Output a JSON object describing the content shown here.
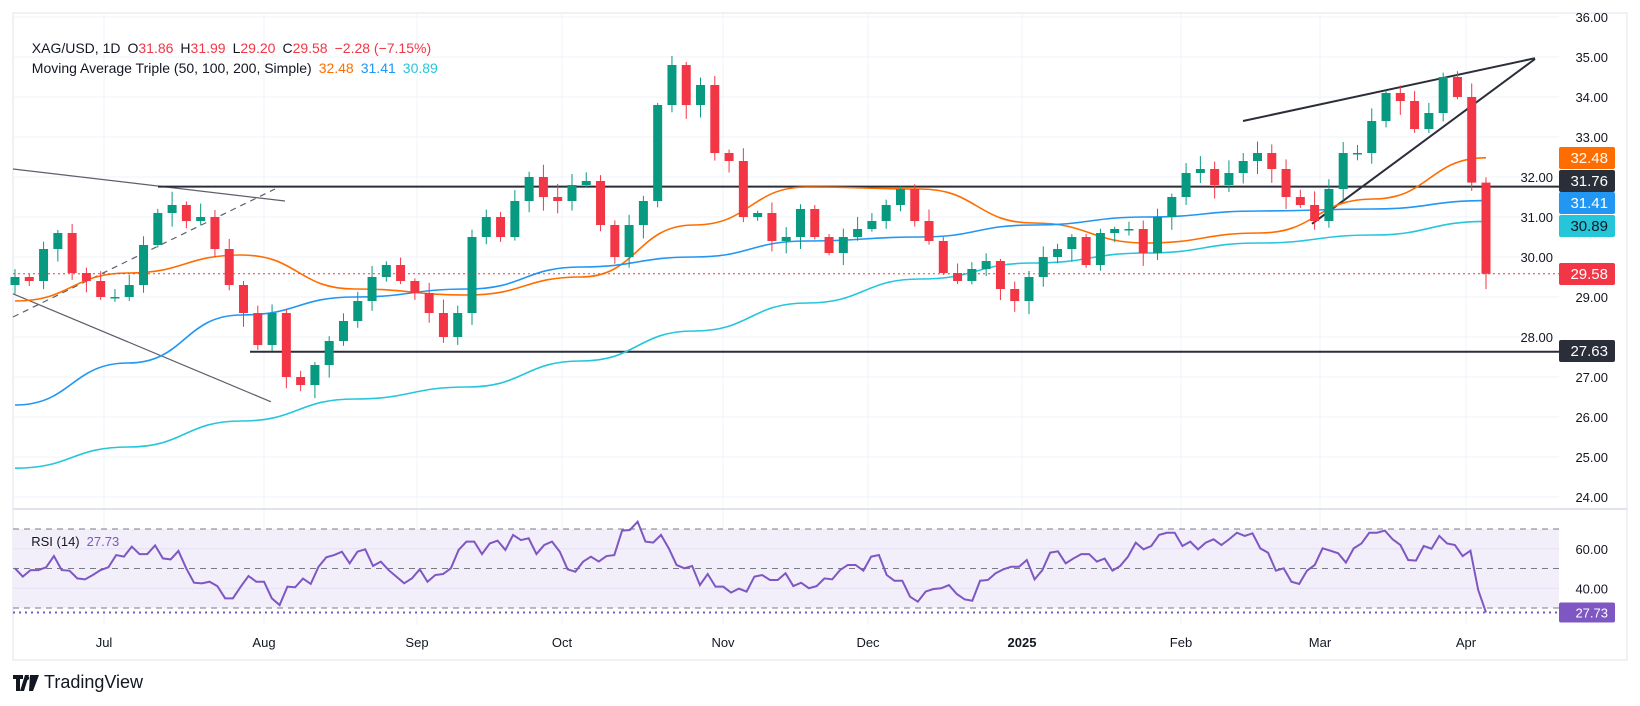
{
  "header": {
    "symbol": "XAG/USD, 1D",
    "open_label": "O",
    "open": "31.86",
    "high_label": "H",
    "high": "31.99",
    "low_label": "L",
    "low": "29.20",
    "close_label": "C",
    "close": "29.58",
    "change": "−2.28 (−7.15%)"
  },
  "ma_legend": {
    "title": "Moving Average Triple (50, 100, 200, Simple)",
    "ma50": "32.48",
    "ma100": "31.41",
    "ma200": "30.89"
  },
  "rsi_legend": {
    "title": "RSI (14)",
    "value": "27.73"
  },
  "colors": {
    "up": "#089981",
    "down": "#f23645",
    "ma50": "#ff6d00",
    "ma100": "#2196f3",
    "ma200": "#26c6da",
    "rsi": "#7e57c2",
    "drawing": "#2a2e39",
    "grid": "#f0f3fa",
    "rsi_band": "#f2eefa"
  },
  "chart_data": [
    {
      "type": "candlestick",
      "title": "XAG/USD, 1D",
      "ylim": [
        23.5,
        36.3
      ],
      "yticks": [
        "36.00",
        "35.00",
        "34.00",
        "33.00",
        "32.00",
        "31.00",
        "30.00",
        "29.00",
        "28.00",
        "27.00",
        "26.00",
        "25.00",
        "24.00"
      ],
      "xticks": [
        "Jul",
        "Aug",
        "Sep",
        "Oct",
        "Nov",
        "Dec",
        "2025",
        "Feb",
        "Mar",
        "Apr"
      ],
      "first_open": 29.3,
      "closes": [
        29.5,
        29.4,
        30.2,
        30.6,
        29.6,
        29.4,
        29.0,
        29.0,
        29.3,
        30.3,
        31.1,
        31.3,
        30.9,
        31.0,
        30.2,
        29.3,
        28.6,
        27.8,
        28.6,
        27.0,
        26.8,
        27.3,
        27.9,
        28.4,
        28.9,
        29.5,
        29.8,
        29.4,
        29.1,
        28.6,
        28.0,
        28.6,
        30.5,
        31.0,
        30.5,
        31.4,
        32.0,
        31.5,
        31.4,
        31.8,
        31.9,
        30.8,
        30.0,
        30.8,
        31.4,
        33.8,
        34.8,
        33.8,
        34.3,
        32.6,
        32.4,
        31.0,
        31.1,
        30.4,
        30.5,
        31.2,
        30.5,
        30.1,
        30.5,
        30.7,
        30.9,
        31.3,
        31.7,
        30.9,
        30.4,
        29.6,
        29.4,
        29.7,
        29.9,
        29.2,
        28.9,
        29.5,
        30.0,
        30.2,
        30.5,
        29.8,
        30.6,
        30.7,
        30.7,
        30.1,
        31.0,
        31.5,
        32.1,
        32.2,
        31.8,
        32.1,
        32.4,
        32.6,
        32.2,
        31.5,
        31.3,
        30.9,
        31.7,
        32.6,
        32.6,
        33.4,
        34.1,
        33.9,
        33.2,
        33.6,
        34.5,
        34.0,
        31.86,
        29.58
      ],
      "last_candle": {
        "open": 31.86,
        "high": 31.99,
        "low": 29.2,
        "close": 29.58
      },
      "moving_averages": [
        {
          "name": "50",
          "color": "#ff6d00",
          "last": 32.48,
          "values": [
            28.9,
            29.6,
            30.05,
            29.2,
            29.05,
            29.5,
            30.8,
            31.75,
            31.7,
            30.85,
            30.35,
            30.6,
            31.45,
            32.48
          ]
        },
        {
          "name": "100",
          "color": "#2196f3",
          "last": 31.41,
          "values": [
            26.3,
            27.35,
            28.55,
            29.0,
            29.2,
            29.75,
            30.0,
            30.4,
            30.5,
            30.8,
            31.0,
            31.15,
            31.2,
            31.41
          ]
        },
        {
          "name": "200",
          "color": "#26c6da",
          "last": 30.89,
          "values": [
            24.72,
            25.25,
            25.9,
            26.45,
            26.75,
            27.4,
            28.15,
            28.85,
            29.45,
            29.85,
            30.1,
            30.35,
            30.55,
            30.89
          ]
        }
      ],
      "horizontal_levels": [
        {
          "price": 31.76,
          "label": "31.76"
        },
        {
          "price": 27.63,
          "label": "27.63"
        }
      ],
      "trendlines": [
        {
          "style": "solid",
          "from": 32.2,
          "to": 31.4
        },
        {
          "style": "solid",
          "from": 29.08,
          "to": 26.38
        },
        {
          "style": "dashed",
          "from": 28.5,
          "to": 31.7
        },
        {
          "style": "solid",
          "from": 33.4,
          "to": 34.97
        },
        {
          "style": "solid",
          "from": 30.83,
          "to": 34.95
        }
      ],
      "price_labels": {
        "last": "29.58",
        "ma50": "32.48",
        "ma100": "31.41",
        "ma200": "30.89"
      }
    },
    {
      "type": "line",
      "title": "RSI (14)",
      "ylim": [
        0,
        100
      ],
      "yticks": [
        "60.00",
        "40.00"
      ],
      "bands": [
        70,
        50,
        30
      ],
      "last": "27.73",
      "values": [
        50.1,
        45.9,
        49.2,
        49.2,
        50.6,
        56.3,
        49.2,
        48.9,
        45.0,
        44.5,
        46.7,
        49.2,
        50.6,
        56.8,
        56.0,
        61.1,
        57.3,
        57.3,
        61.7,
        55.1,
        54.6,
        58.9,
        50.1,
        42.8,
        42.5,
        43.3,
        41.1,
        34.9,
        34.9,
        40.8,
        46.2,
        43.3,
        43.3,
        34.9,
        31.5,
        40.8,
        40.5,
        44.9,
        42.2,
        50.9,
        55.7,
        56.8,
        58.5,
        52.6,
        58.5,
        59.7,
        51.3,
        53.5,
        49.2,
        45.9,
        42.5,
        45.0,
        49.6,
        43.3,
        46.7,
        47.2,
        50.1,
        59.4,
        63.6,
        63.6,
        57.3,
        62.7,
        64.1,
        59.4,
        67.0,
        64.4,
        65.3,
        57.3,
        61.9,
        63.6,
        58.5,
        49.6,
        48.4,
        53.5,
        56.0,
        53.5,
        56.3,
        56.8,
        69.2,
        69.5,
        73.7,
        63.6,
        63.1,
        67.0,
        60.2,
        51.8,
        50.1,
        51.3,
        41.6,
        47.2,
        40.8,
        40.8,
        37.8,
        39.8,
        38.3,
        45.9,
        46.7,
        44.2,
        44.2,
        47.6,
        41.1,
        42.8,
        40.0,
        41.1,
        45.0,
        44.5,
        49.2,
        51.8,
        51.8,
        48.9,
        56.0,
        56.8,
        46.7,
        43.8,
        43.8,
        35.7,
        33.2,
        38.3,
        39.6,
        40.0,
        41.6,
        37.1,
        34.4,
        33.7,
        43.8,
        44.2,
        47.6,
        49.6,
        50.9,
        50.9,
        54.3,
        44.5,
        49.2,
        58.0,
        58.7,
        52.6,
        55.1,
        57.3,
        57.3,
        53.5,
        55.0,
        48.9,
        51.3,
        56.0,
        63.1,
        59.7,
        61.4,
        67.0,
        68.1,
        68.1,
        61.4,
        63.6,
        59.7,
        63.1,
        64.8,
        61.9,
        64.8,
        68.1,
        66.5,
        67.8,
        60.2,
        58.0,
        48.9,
        50.1,
        43.3,
        42.2,
        48.9,
        51.8,
        60.2,
        59.0,
        57.7,
        53.0,
        60.2,
        62.7,
        68.1,
        68.1,
        69.2,
        64.8,
        61.9,
        54.3,
        54.0,
        61.4,
        60.0,
        66.5,
        62.7,
        61.9,
        56.3,
        59.0,
        39.1,
        27.73
      ]
    }
  ],
  "branding": {
    "name": "TradingView"
  }
}
